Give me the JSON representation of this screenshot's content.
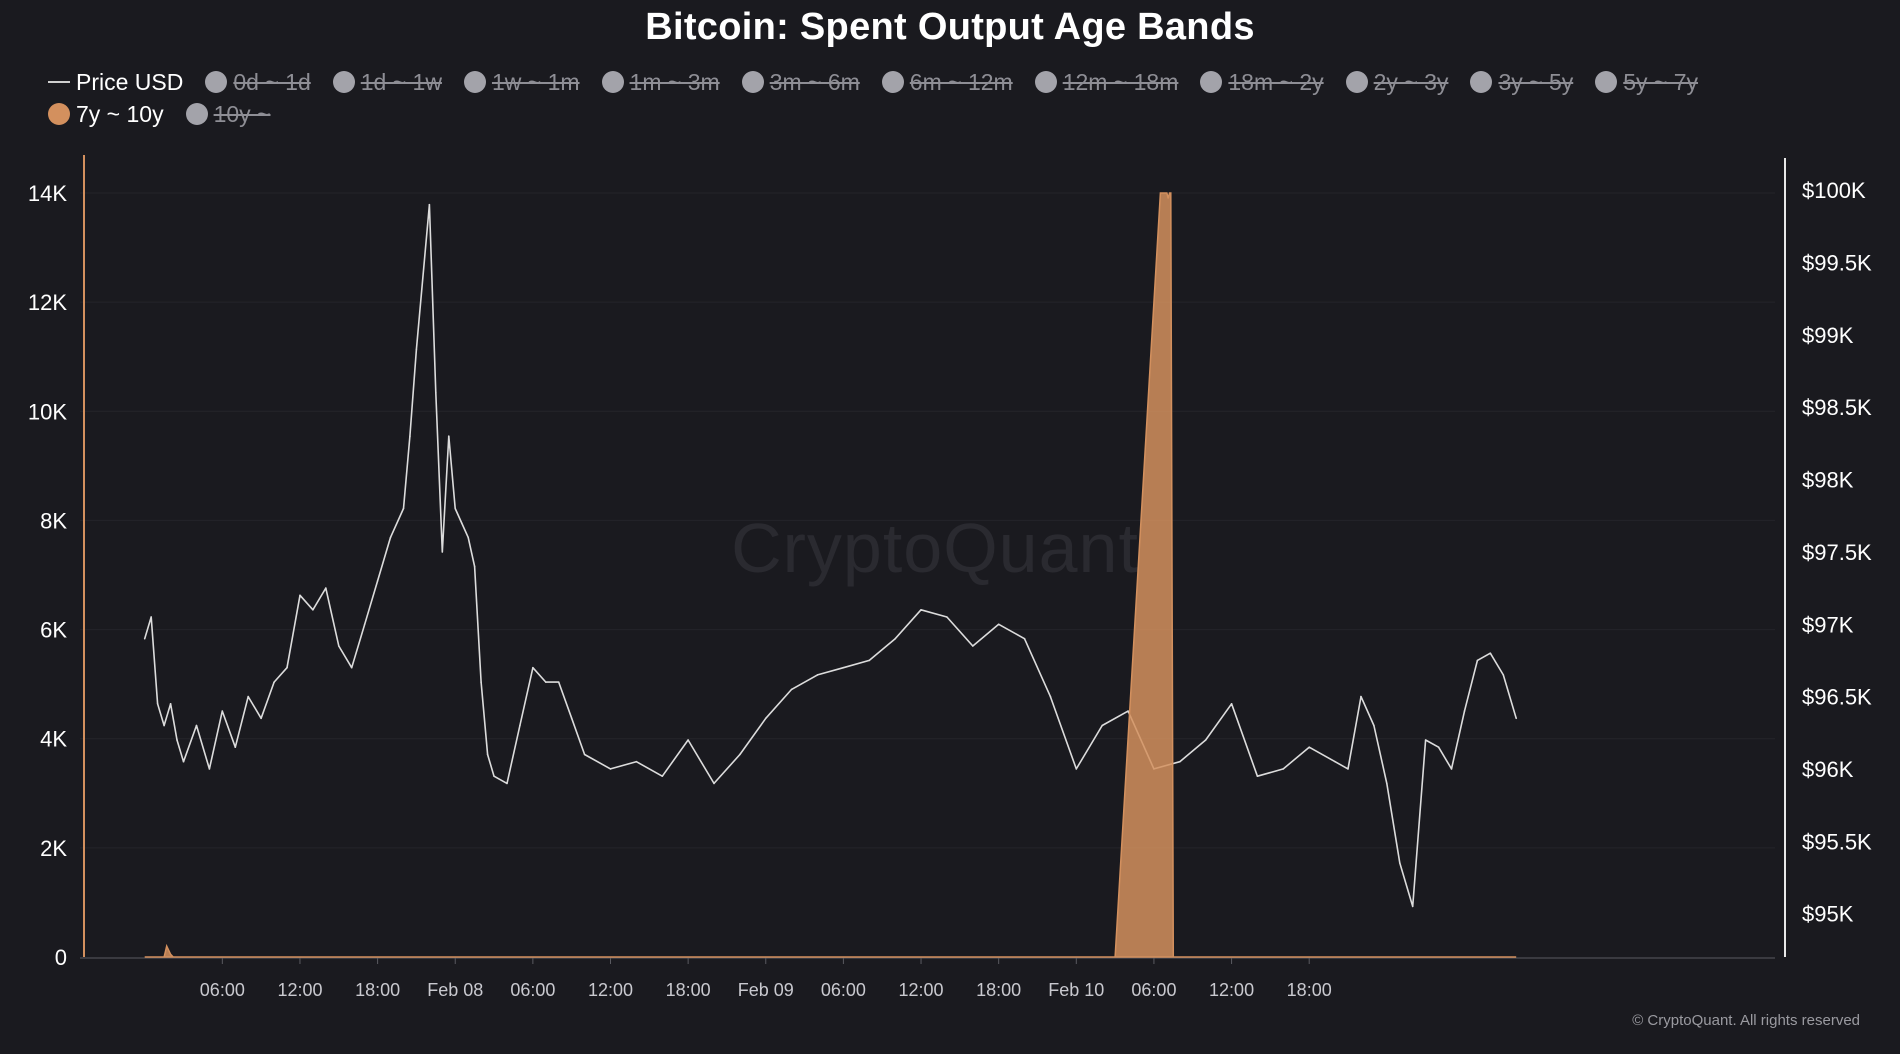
{
  "chart_data": {
    "type": "line",
    "title": "Bitcoin: Spent Output Age Bands",
    "legend": [
      {
        "label": "Price USD",
        "kind": "line",
        "active": true,
        "color": "#cfcfcf"
      },
      {
        "label": "0d ~ 1d",
        "kind": "dot",
        "active": false,
        "color": "#a3a3aa"
      },
      {
        "label": "1d ~ 1w",
        "kind": "dot",
        "active": false,
        "color": "#a3a3aa"
      },
      {
        "label": "1w ~ 1m",
        "kind": "dot",
        "active": false,
        "color": "#a3a3aa"
      },
      {
        "label": "1m ~ 3m",
        "kind": "dot",
        "active": false,
        "color": "#a3a3aa"
      },
      {
        "label": "3m ~ 6m",
        "kind": "dot",
        "active": false,
        "color": "#a3a3aa"
      },
      {
        "label": "6m ~ 12m",
        "kind": "dot",
        "active": false,
        "color": "#a3a3aa"
      },
      {
        "label": "12m ~ 18m",
        "kind": "dot",
        "active": false,
        "color": "#a3a3aa"
      },
      {
        "label": "18m ~ 2y",
        "kind": "dot",
        "active": false,
        "color": "#a3a3aa"
      },
      {
        "label": "2y ~ 3y",
        "kind": "dot",
        "active": false,
        "color": "#a3a3aa"
      },
      {
        "label": "3y ~ 5y",
        "kind": "dot",
        "active": false,
        "color": "#a3a3aa"
      },
      {
        "label": "5y ~ 7y",
        "kind": "dot",
        "active": false,
        "color": "#a3a3aa"
      },
      {
        "label": "7y ~ 10y",
        "kind": "dot",
        "active": true,
        "color": "#d3905e"
      },
      {
        "label": "10y ~",
        "kind": "dot",
        "active": false,
        "color": "#a3a3aa"
      }
    ],
    "x_ticks": [
      "06:00",
      "12:00",
      "18:00",
      "Feb 08",
      "06:00",
      "12:00",
      "18:00",
      "Feb 09",
      "06:00",
      "12:00",
      "18:00",
      "Feb 10",
      "06:00",
      "12:00",
      "18:00"
    ],
    "left_axis": {
      "ylim": [
        0,
        14000
      ],
      "ticks": [
        0,
        2000,
        4000,
        6000,
        8000,
        10000,
        12000,
        14000
      ],
      "tick_labels": [
        "0",
        "2K",
        "4K",
        "6K",
        "8K",
        "10K",
        "12K",
        "14K"
      ]
    },
    "right_axis": {
      "ylim": [
        94700,
        100050
      ],
      "ticks": [
        95000,
        95500,
        96000,
        96500,
        97000,
        97500,
        98000,
        98500,
        99000,
        99500,
        100000
      ],
      "tick_labels": [
        "$95K",
        "$95.5K",
        "$96K",
        "$96.5K",
        "$97K",
        "$97.5K",
        "$98K",
        "$98.5K",
        "$99K",
        "$99.5K",
        "$100K"
      ]
    },
    "series": [
      {
        "name": "Price USD",
        "axis": "right",
        "color": "#dcdcdc",
        "x_hours": [
          0,
          0.5,
          1,
          1.5,
          2,
          2.5,
          3,
          4,
          5,
          6,
          7,
          8,
          9,
          10,
          11,
          12,
          13,
          14,
          15,
          16,
          17,
          18,
          19,
          20,
          20.5,
          21,
          22,
          22.5,
          23,
          23.5,
          24,
          24.5,
          25,
          25.5,
          26,
          26.5,
          27,
          28,
          29,
          30,
          31,
          32,
          33,
          34,
          36,
          38,
          40,
          42,
          44,
          46,
          48,
          50,
          52,
          54,
          56,
          58,
          60,
          62,
          64,
          66,
          68,
          70,
          72,
          74,
          76,
          78,
          80,
          82,
          84,
          86,
          88,
          90,
          92,
          93,
          94,
          95,
          96,
          97,
          98,
          99,
          100,
          101,
          102,
          103,
          104,
          105,
          106
        ],
        "values": [
          96.9,
          97.05,
          96.45,
          96.3,
          96.45,
          96.2,
          96.05,
          96.3,
          96.0,
          96.4,
          96.15,
          96.5,
          96.35,
          96.6,
          96.7,
          97.2,
          97.1,
          97.25,
          96.85,
          96.7,
          97.0,
          97.3,
          97.6,
          97.8,
          98.3,
          98.9,
          99.9,
          98.6,
          97.5,
          98.3,
          97.8,
          97.7,
          97.6,
          97.4,
          96.6,
          96.1,
          95.95,
          95.9,
          96.3,
          96.7,
          96.6,
          96.6,
          96.35,
          96.1,
          96.0,
          96.05,
          95.95,
          96.2,
          95.9,
          96.1,
          96.35,
          96.55,
          96.65,
          96.7,
          96.75,
          96.9,
          97.1,
          97.05,
          96.85,
          97.0,
          96.9,
          96.5,
          96.0,
          96.3,
          96.4,
          96.0,
          96.05,
          96.2,
          96.45,
          95.95,
          96.0,
          96.15,
          96.05,
          96.0,
          96.5,
          96.3,
          95.9,
          95.35,
          95.05,
          96.2,
          96.15,
          96.0,
          96.4,
          96.75,
          96.8,
          96.65,
          96.35
        ]
      },
      {
        "name": "7y ~ 10y",
        "axis": "left",
        "color": "#d3905e",
        "x_hours": [
          0,
          1.5,
          1.7,
          2,
          2.2,
          5,
          20,
          48,
          75,
          78.5,
          79,
          79.1,
          79.2,
          79.3,
          79.5,
          80,
          81,
          106
        ],
        "values": [
          0,
          0,
          200,
          50,
          0,
          0,
          0,
          0,
          0,
          14000,
          14000,
          13900,
          14000,
          14000,
          0,
          0,
          0,
          0
        ]
      }
    ],
    "x_axis_hours": {
      "start": -5,
      "end": 126
    },
    "watermark": "CryptoQuant",
    "footer": "© CryptoQuant. All rights reserved"
  }
}
